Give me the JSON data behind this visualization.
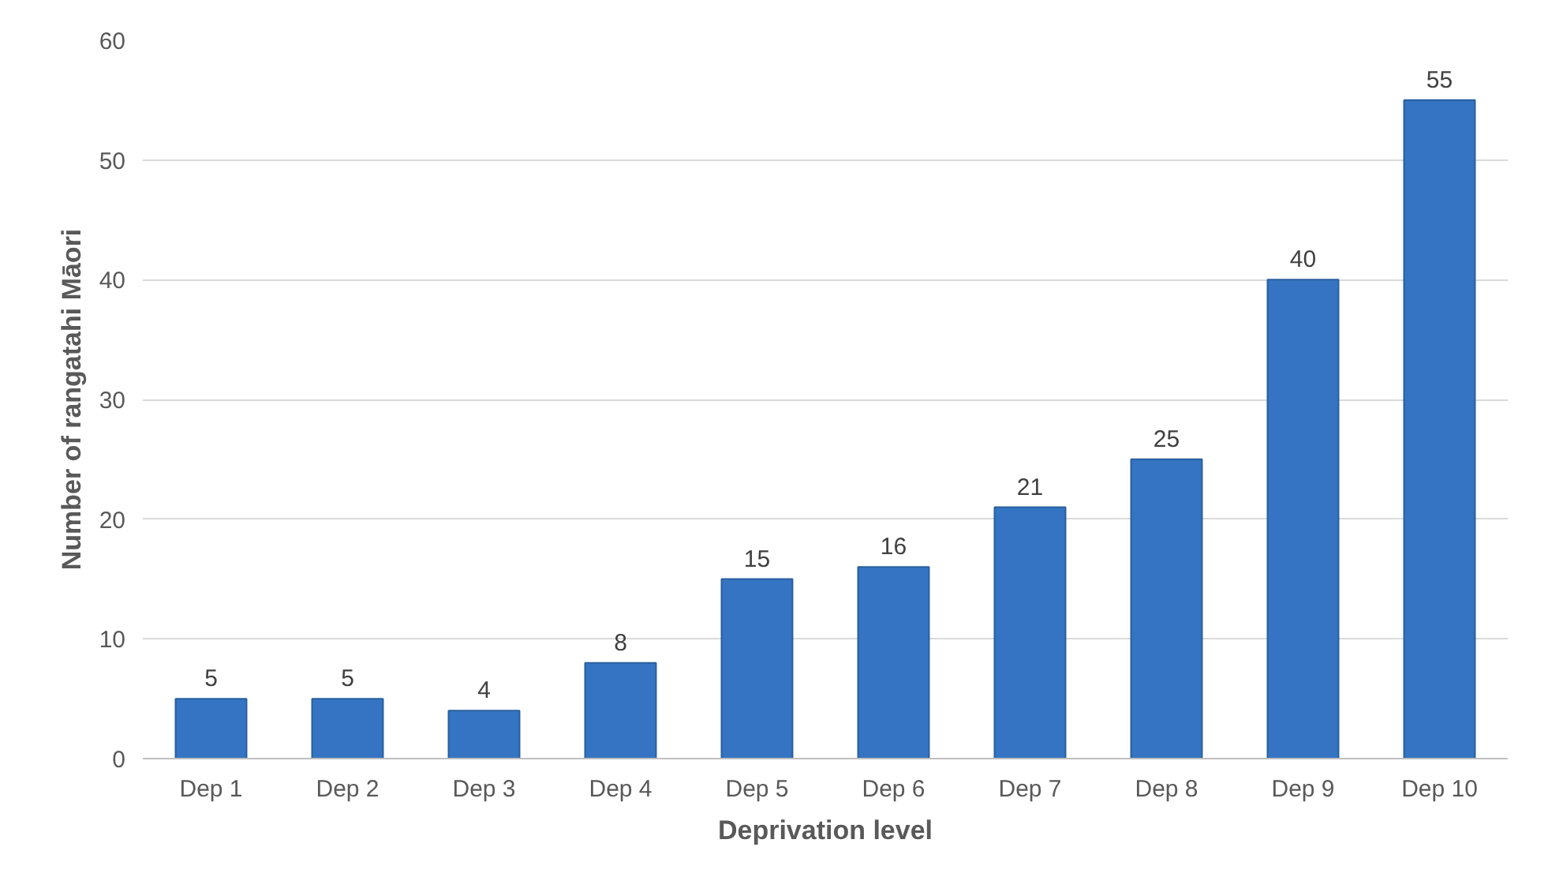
{
  "chart_data": {
    "type": "bar",
    "xlabel": "Deprivation level",
    "ylabel": "Number of rangatahi Māori",
    "categories": [
      "Dep 1",
      "Dep 2",
      "Dep 3",
      "Dep 4",
      "Dep 5",
      "Dep 6",
      "Dep 7",
      "Dep 8",
      "Dep 9",
      "Dep 10"
    ],
    "values": [
      5,
      5,
      4,
      8,
      15,
      16,
      21,
      25,
      40,
      55
    ],
    "color": "#3474c2",
    "ylim": [
      0,
      60
    ],
    "yticks": [
      0,
      10,
      20,
      30,
      40,
      50,
      60
    ],
    "grid": "y",
    "data_labels": true
  }
}
